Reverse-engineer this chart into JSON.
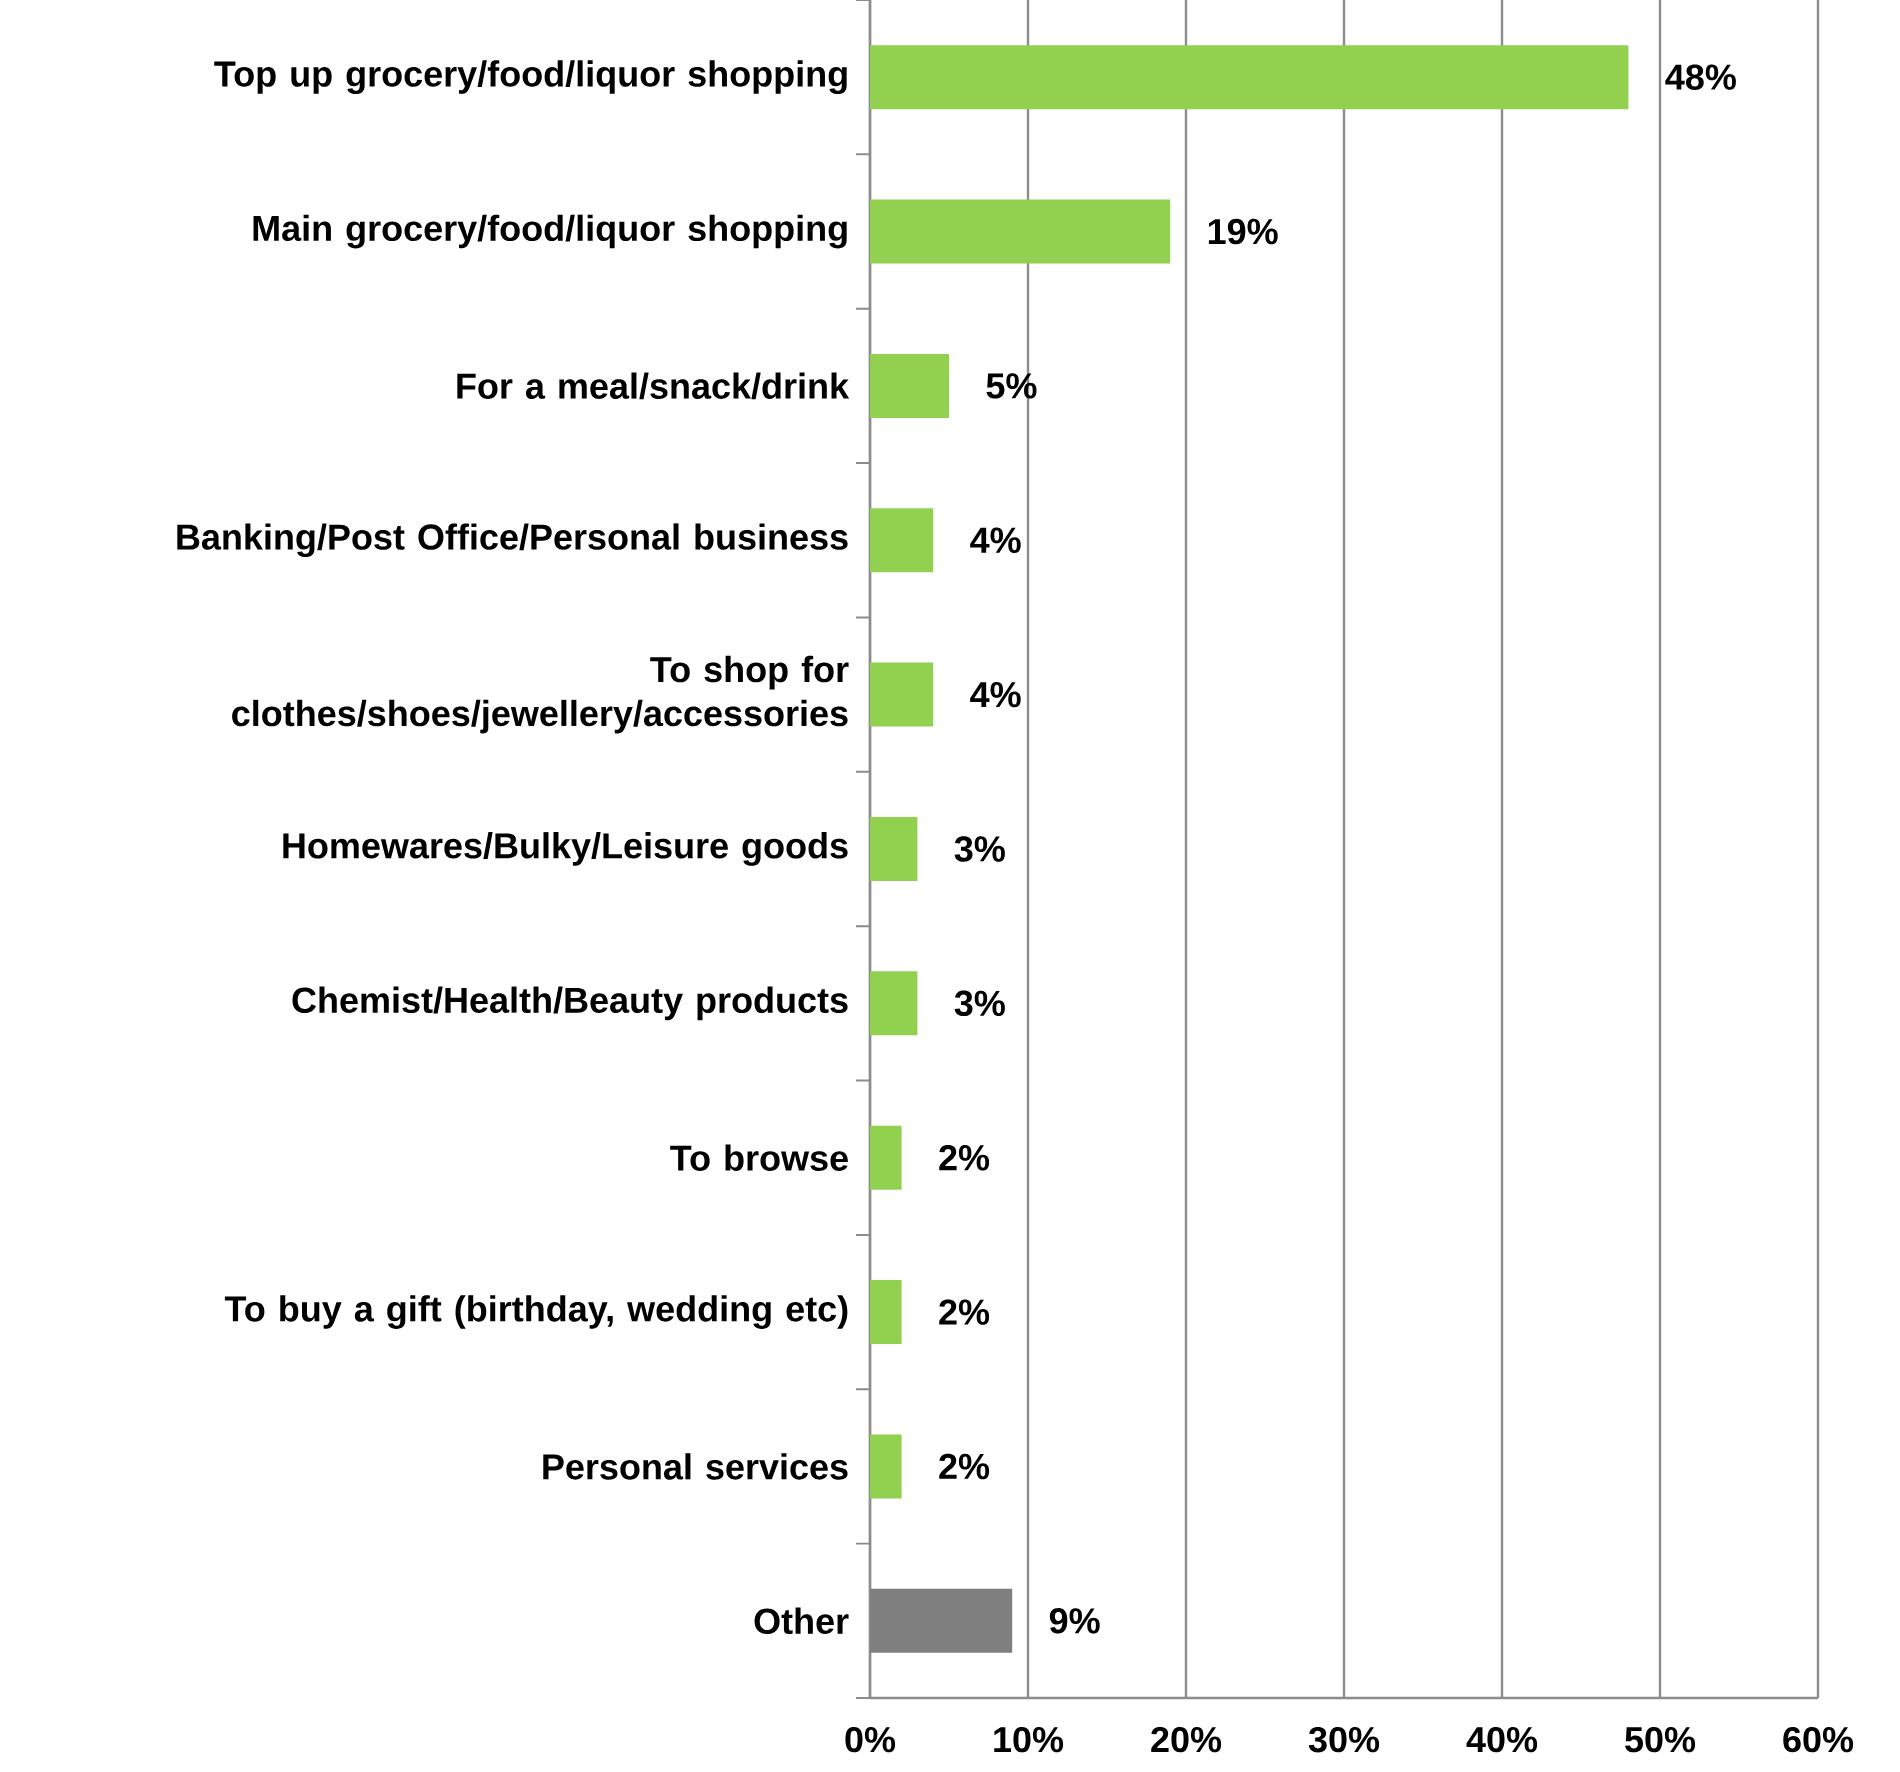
{
  "chart_data": {
    "type": "bar",
    "orientation": "horizontal",
    "categories": [
      "Top up grocery/food/liquor shopping",
      "Main grocery/food/liquor shopping",
      "For a meal/snack/drink",
      "Banking/Post Office/Personal business",
      "To shop for clothes/shoes/jewellery/accessories",
      "Homewares/Bulky/Leisure goods",
      "Chemist/Health/Beauty products",
      "To browse",
      "To buy a gift (birthday, wedding etc)",
      "Personal services",
      "Other"
    ],
    "values": [
      48,
      19,
      5,
      4,
      4,
      3,
      3,
      2,
      2,
      2,
      9
    ],
    "value_labels": [
      "48%",
      "19%",
      "5%",
      "4%",
      "4%",
      "3%",
      "3%",
      "2%",
      "2%",
      "2%",
      "9%"
    ],
    "colors": [
      "#92d050",
      "#92d050",
      "#92d050",
      "#92d050",
      "#92d050",
      "#92d050",
      "#92d050",
      "#92d050",
      "#92d050",
      "#92d050",
      "#7f7f7f"
    ],
    "xlim": [
      0,
      60
    ],
    "xticks": [
      {
        "value": 0,
        "label": "0%"
      },
      {
        "value": 10,
        "label": "10%"
      },
      {
        "value": 20,
        "label": "20%"
      },
      {
        "value": 30,
        "label": "30%"
      },
      {
        "value": 40,
        "label": "40%"
      },
      {
        "value": 50,
        "label": "50%"
      },
      {
        "value": 60,
        "label": "60%"
      }
    ],
    "grid": "x"
  }
}
